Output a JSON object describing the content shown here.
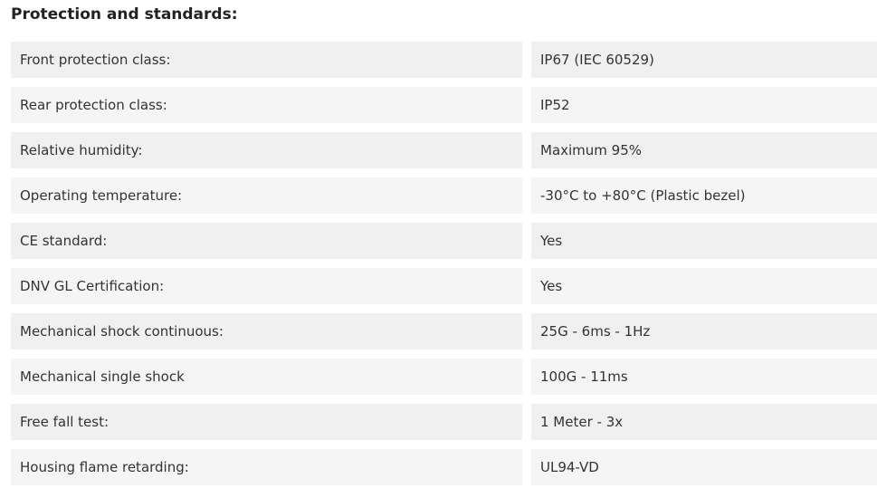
{
  "title": "Protection and standards:",
  "rows": [
    {
      "label": "Front protection class:",
      "value": "IP67 (IEC 60529)"
    },
    {
      "label": "Rear protection class:",
      "value": "IP52"
    },
    {
      "label": "Relative humidity:",
      "value": "Maximum 95%"
    },
    {
      "label": "Operating temperature:",
      "value": "-30°C to +80°C (Plastic bezel)"
    },
    {
      "label": "CE standard:",
      "value": "Yes"
    },
    {
      "label": "DNV GL Certification:",
      "value": "Yes"
    },
    {
      "label": "Mechanical shock continuous:",
      "value": "25G - 6ms - 1Hz"
    },
    {
      "label": "Mechanical single shock",
      "value": "100G - 11ms"
    },
    {
      "label": "Free fall test:",
      "value": "1 Meter - 3x"
    },
    {
      "label": "Housing flame retarding:",
      "value": "UL94-VD"
    }
  ]
}
